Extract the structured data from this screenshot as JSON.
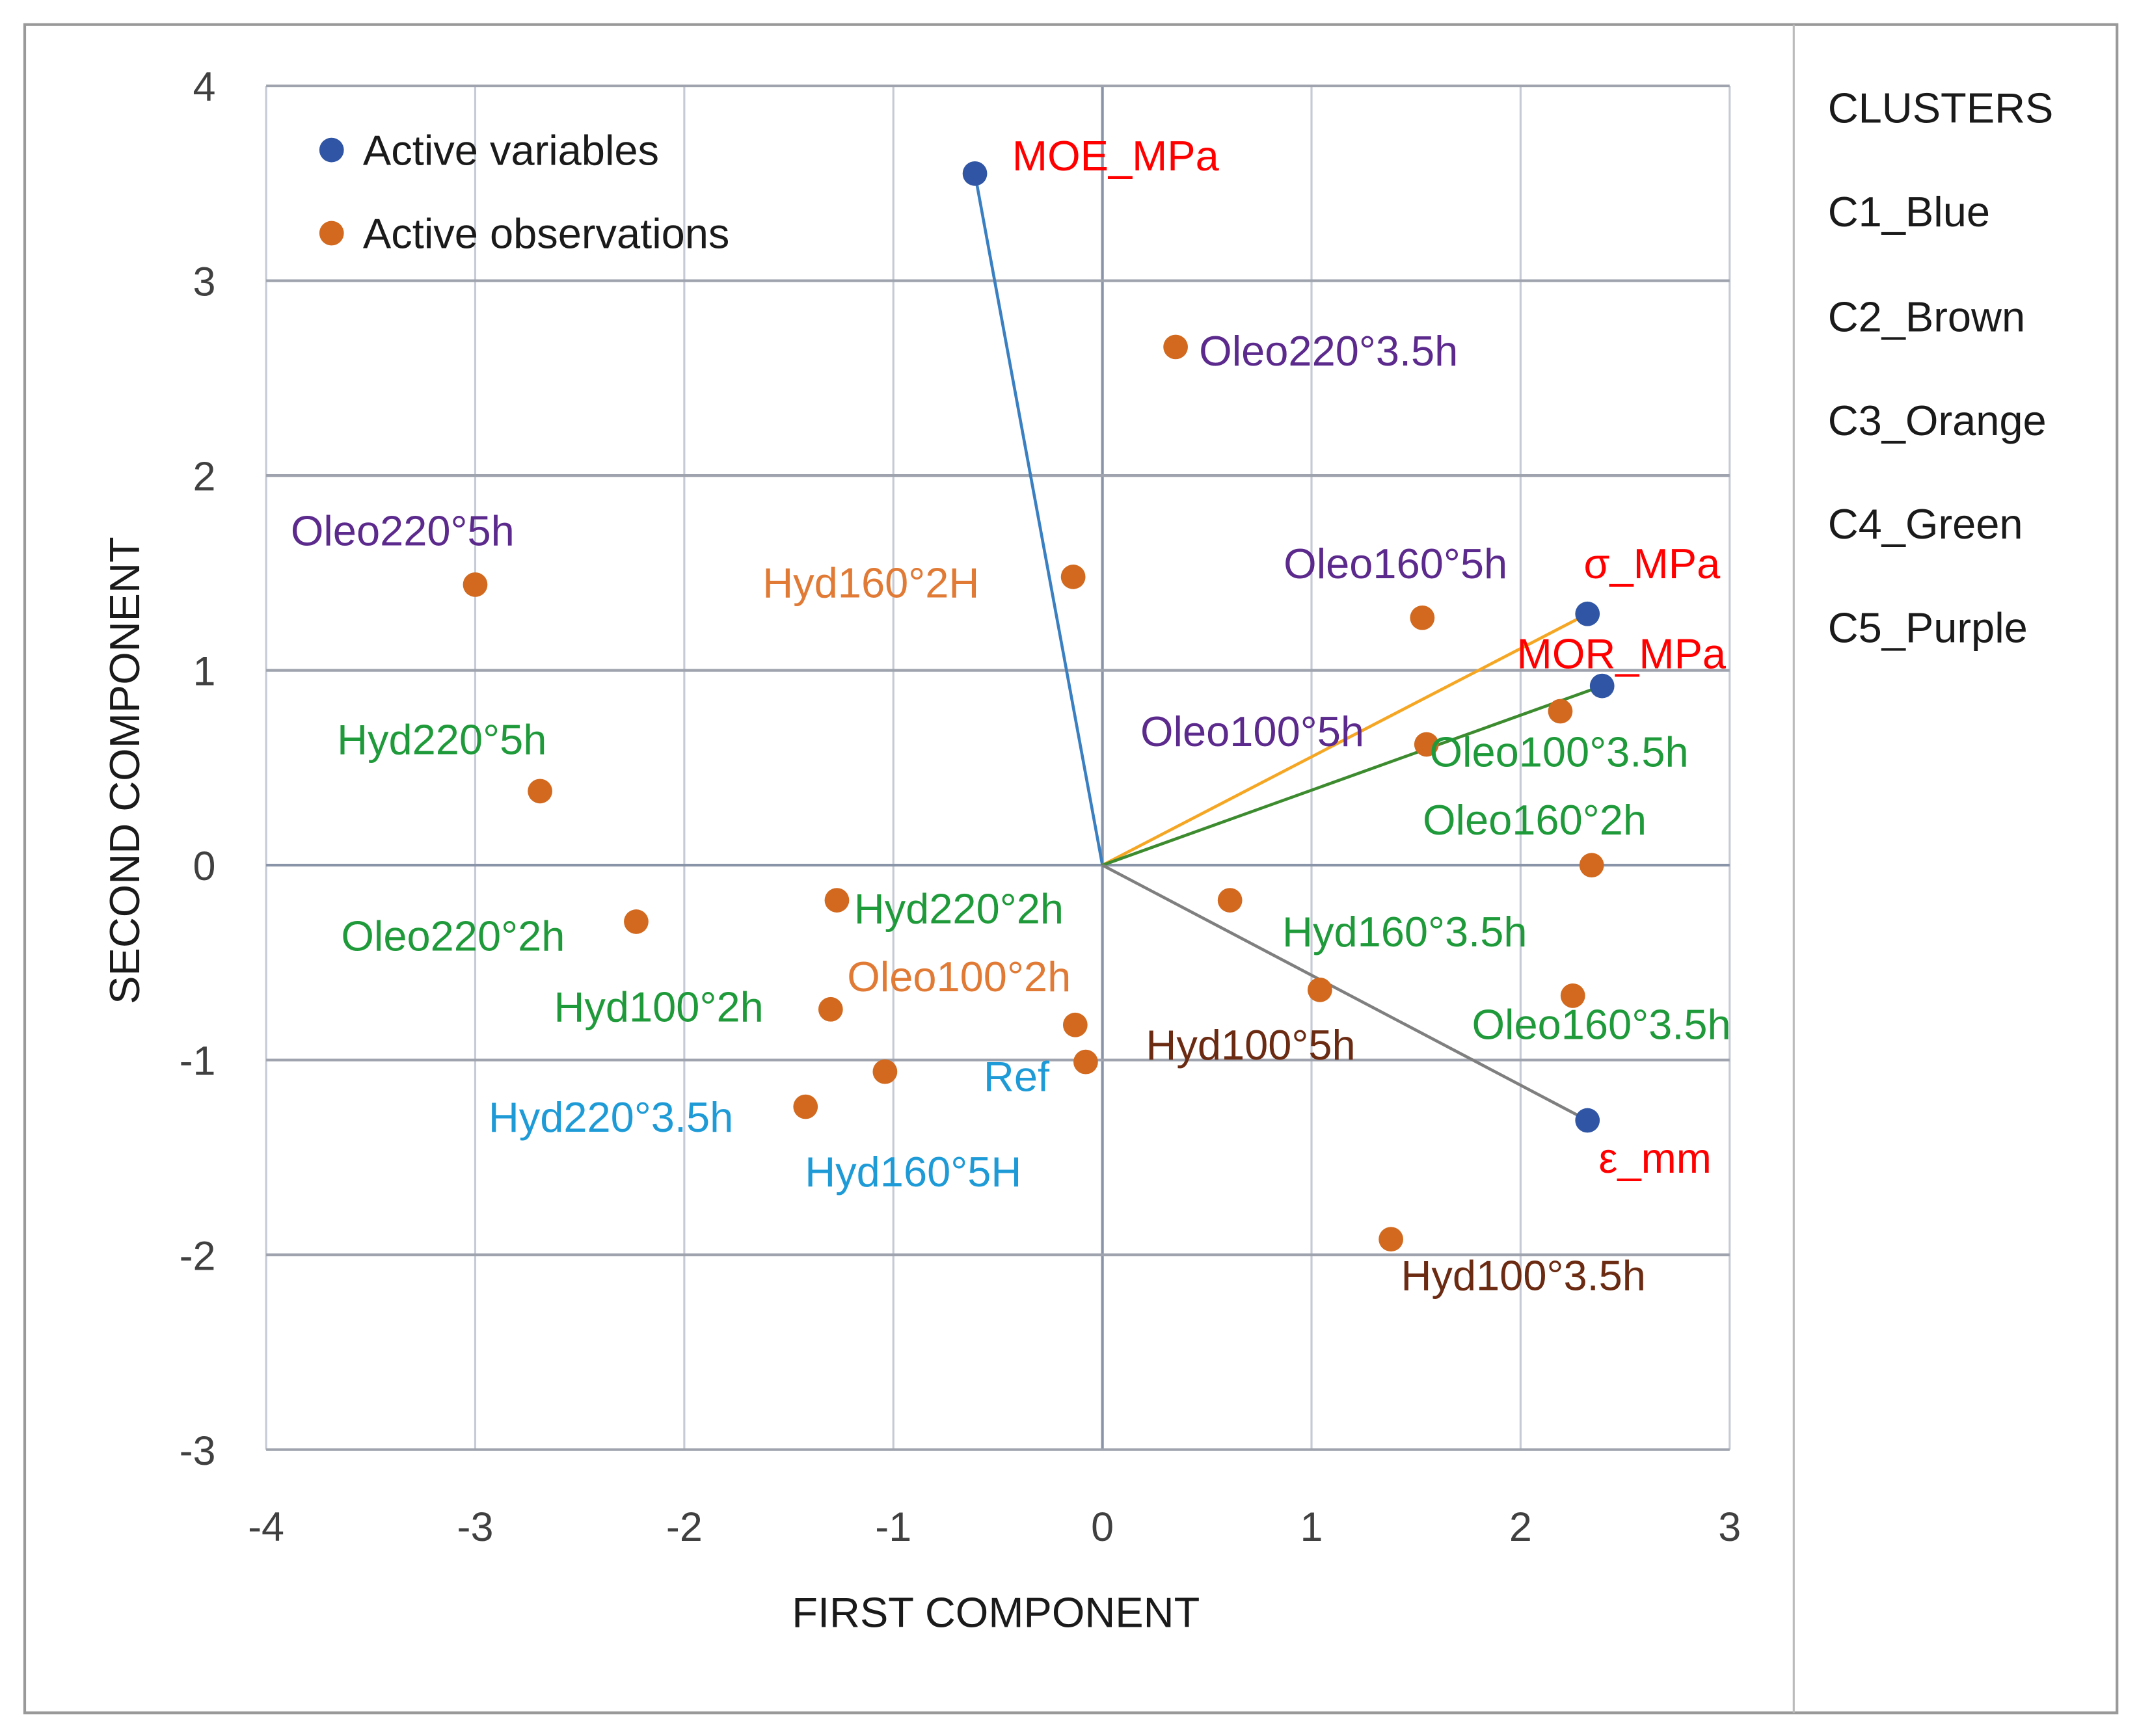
{
  "chart_data": {
    "type": "scatter",
    "xlabel": "FIRST COMPONENT",
    "ylabel": "SECOND COMPONENT",
    "xlim": [
      -4,
      3
    ],
    "ylim": [
      -3,
      4
    ],
    "xticks": [
      "-4",
      "-3",
      "-2",
      "-1",
      "0",
      "1",
      "2",
      "3"
    ],
    "yticks": [
      "-3",
      "-2",
      "-1",
      "0",
      "1",
      "2",
      "3",
      "4"
    ],
    "grid": true,
    "legend": {
      "placement": "top-left",
      "entries": [
        {
          "name": "Active variables",
          "color": "#2f55a4"
        },
        {
          "name": "Active observations",
          "color": "#d2691e"
        }
      ]
    },
    "clusters": {
      "title": "CLUSTERS",
      "items": [
        {
          "name": "C1_Blue",
          "color": "#1e9bd7"
        },
        {
          "name": "C2_Brown",
          "color": "#6b2a12"
        },
        {
          "name": "C3_Orange",
          "color": "#e07a35"
        },
        {
          "name": "C4_Green",
          "color": "#1f9a3a"
        },
        {
          "name": "C5_Purple",
          "color": "#5b2a8c"
        }
      ]
    },
    "variable_label_color": "#ff0000",
    "variables": [
      {
        "label": "MOE_MPa",
        "x": -0.61,
        "y": 3.55,
        "line_color": "#3a7fc1"
      },
      {
        "label": "σ_MPa",
        "x": 2.32,
        "y": 1.29,
        "line_color": "#f5a623"
      },
      {
        "label": "MOR_MPa",
        "x": 2.39,
        "y": 0.92,
        "line_color": "#3d8b2f"
      },
      {
        "label": "ε_mm",
        "x": 2.32,
        "y": -1.31,
        "line_color": "#7f7f7f"
      }
    ],
    "observations": [
      {
        "label": "Oleo220°3.5h",
        "x": 0.35,
        "y": 2.66,
        "cluster": "C5_Purple"
      },
      {
        "label": "Oleo220°5h",
        "x": -3.0,
        "y": 1.44,
        "cluster": "C5_Purple"
      },
      {
        "label": "Hyd160°2H",
        "x": -0.14,
        "y": 1.48,
        "cluster": "C3_Orange"
      },
      {
        "label": "Oleo160°5h",
        "x": 1.53,
        "y": 1.27,
        "cluster": "C5_Purple"
      },
      {
        "label": "Oleo100°5h",
        "x": 1.55,
        "y": 0.62,
        "cluster": "C5_Purple"
      },
      {
        "label": "Oleo100°3.5h",
        "x": 2.19,
        "y": 0.79,
        "cluster": "C4_Green"
      },
      {
        "label": "Hyd220°5h",
        "x": -2.69,
        "y": 0.38,
        "cluster": "C4_Green"
      },
      {
        "label": "Oleo160°2h",
        "x": 2.34,
        "y": 0.0,
        "cluster": "C4_Green"
      },
      {
        "label": "Hyd220°2h",
        "x": -1.27,
        "y": -0.18,
        "cluster": "C4_Green"
      },
      {
        "label": "Oleo220°2h",
        "x": -2.23,
        "y": -0.29,
        "cluster": "C4_Green"
      },
      {
        "label": "Hyd160°3.5h",
        "x": 0.61,
        "y": -0.18,
        "cluster": "C4_Green"
      },
      {
        "label": "Oleo100°2h",
        "x": -0.13,
        "y": -0.82,
        "cluster": "C3_Orange"
      },
      {
        "label": "Hyd100°2h",
        "x": -1.3,
        "y": -0.74,
        "cluster": "C4_Green"
      },
      {
        "label": "Oleo160°3.5h",
        "x": 2.25,
        "y": -0.67,
        "cluster": "C4_Green"
      },
      {
        "label": "Ref",
        "x": -0.08,
        "y": -1.01,
        "cluster": "C1_Blue"
      },
      {
        "label": "Hyd100°5h",
        "x": 1.04,
        "y": -0.64,
        "cluster": "C2_Brown"
      },
      {
        "label": "Hyd220°3.5h",
        "x": -1.42,
        "y": -1.24,
        "cluster": "C1_Blue"
      },
      {
        "label": "Hyd160°5H",
        "x": -1.04,
        "y": -1.06,
        "cluster": "C1_Blue"
      },
      {
        "label": "Hyd100°3.5h",
        "x": 1.38,
        "y": -1.92,
        "cluster": "C2_Brown"
      }
    ]
  }
}
